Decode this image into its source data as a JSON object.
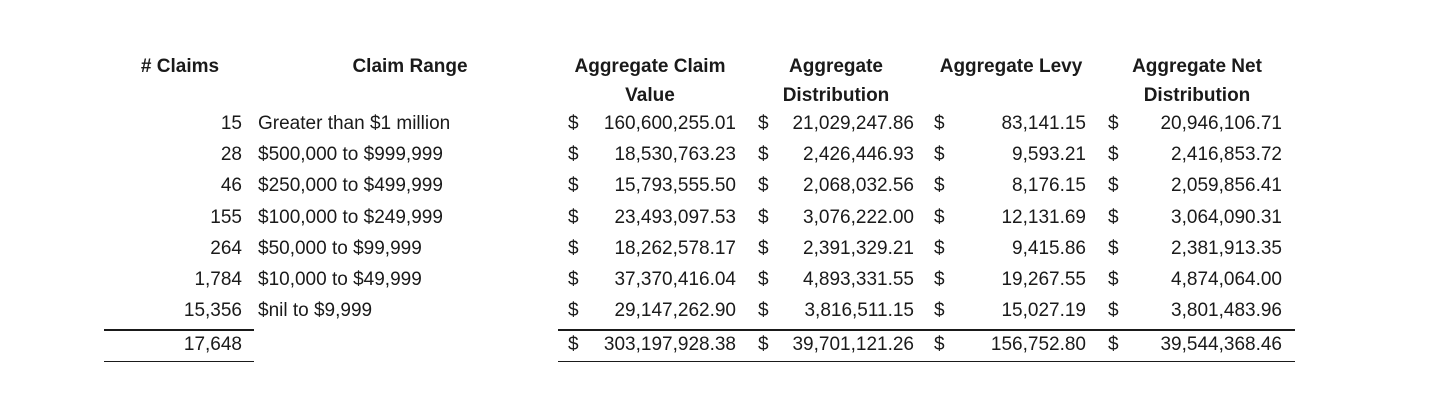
{
  "headers": {
    "claims": "# Claims",
    "range": "Claim Range",
    "value_line1": "Aggregate Claim",
    "value_line2": "Value",
    "dist_line1": "Aggregate",
    "dist_line2": "Distribution",
    "levy": "Aggregate Levy",
    "net_line1": "Aggregate Net",
    "net_line2": "Distribution"
  },
  "currency_symbol": "$",
  "rows": [
    {
      "claims": "15",
      "range": "Greater than $1 million",
      "value": "160,600,255.01",
      "distribution": "21,029,247.86",
      "levy": "83,141.15",
      "net": "20,946,106.71"
    },
    {
      "claims": "28",
      "range": "$500,000 to $999,999",
      "value": "18,530,763.23",
      "distribution": "2,426,446.93",
      "levy": "9,593.21",
      "net": "2,416,853.72"
    },
    {
      "claims": "46",
      "range": "$250,000 to $499,999",
      "value": "15,793,555.50",
      "distribution": "2,068,032.56",
      "levy": "8,176.15",
      "net": "2,059,856.41"
    },
    {
      "claims": "155",
      "range": "$100,000 to $249,999",
      "value": "23,493,097.53",
      "distribution": "3,076,222.00",
      "levy": "12,131.69",
      "net": "3,064,090.31"
    },
    {
      "claims": "264",
      "range": "$50,000 to $99,999",
      "value": "18,262,578.17",
      "distribution": "2,391,329.21",
      "levy": "9,415.86",
      "net": "2,381,913.35"
    },
    {
      "claims": "1,784",
      "range": "$10,000 to $49,999",
      "value": "37,370,416.04",
      "distribution": "4,893,331.55",
      "levy": "19,267.55",
      "net": "4,874,064.00"
    },
    {
      "claims": "15,356",
      "range": "$nil to $9,999",
      "value": "29,147,262.90",
      "distribution": "3,816,511.15",
      "levy": "15,027.19",
      "net": "3,801,483.96"
    }
  ],
  "totals": {
    "claims": "17,648",
    "value": "303,197,928.38",
    "distribution": "39,701,121.26",
    "levy": "156,752.80",
    "net": "39,544,368.46"
  }
}
